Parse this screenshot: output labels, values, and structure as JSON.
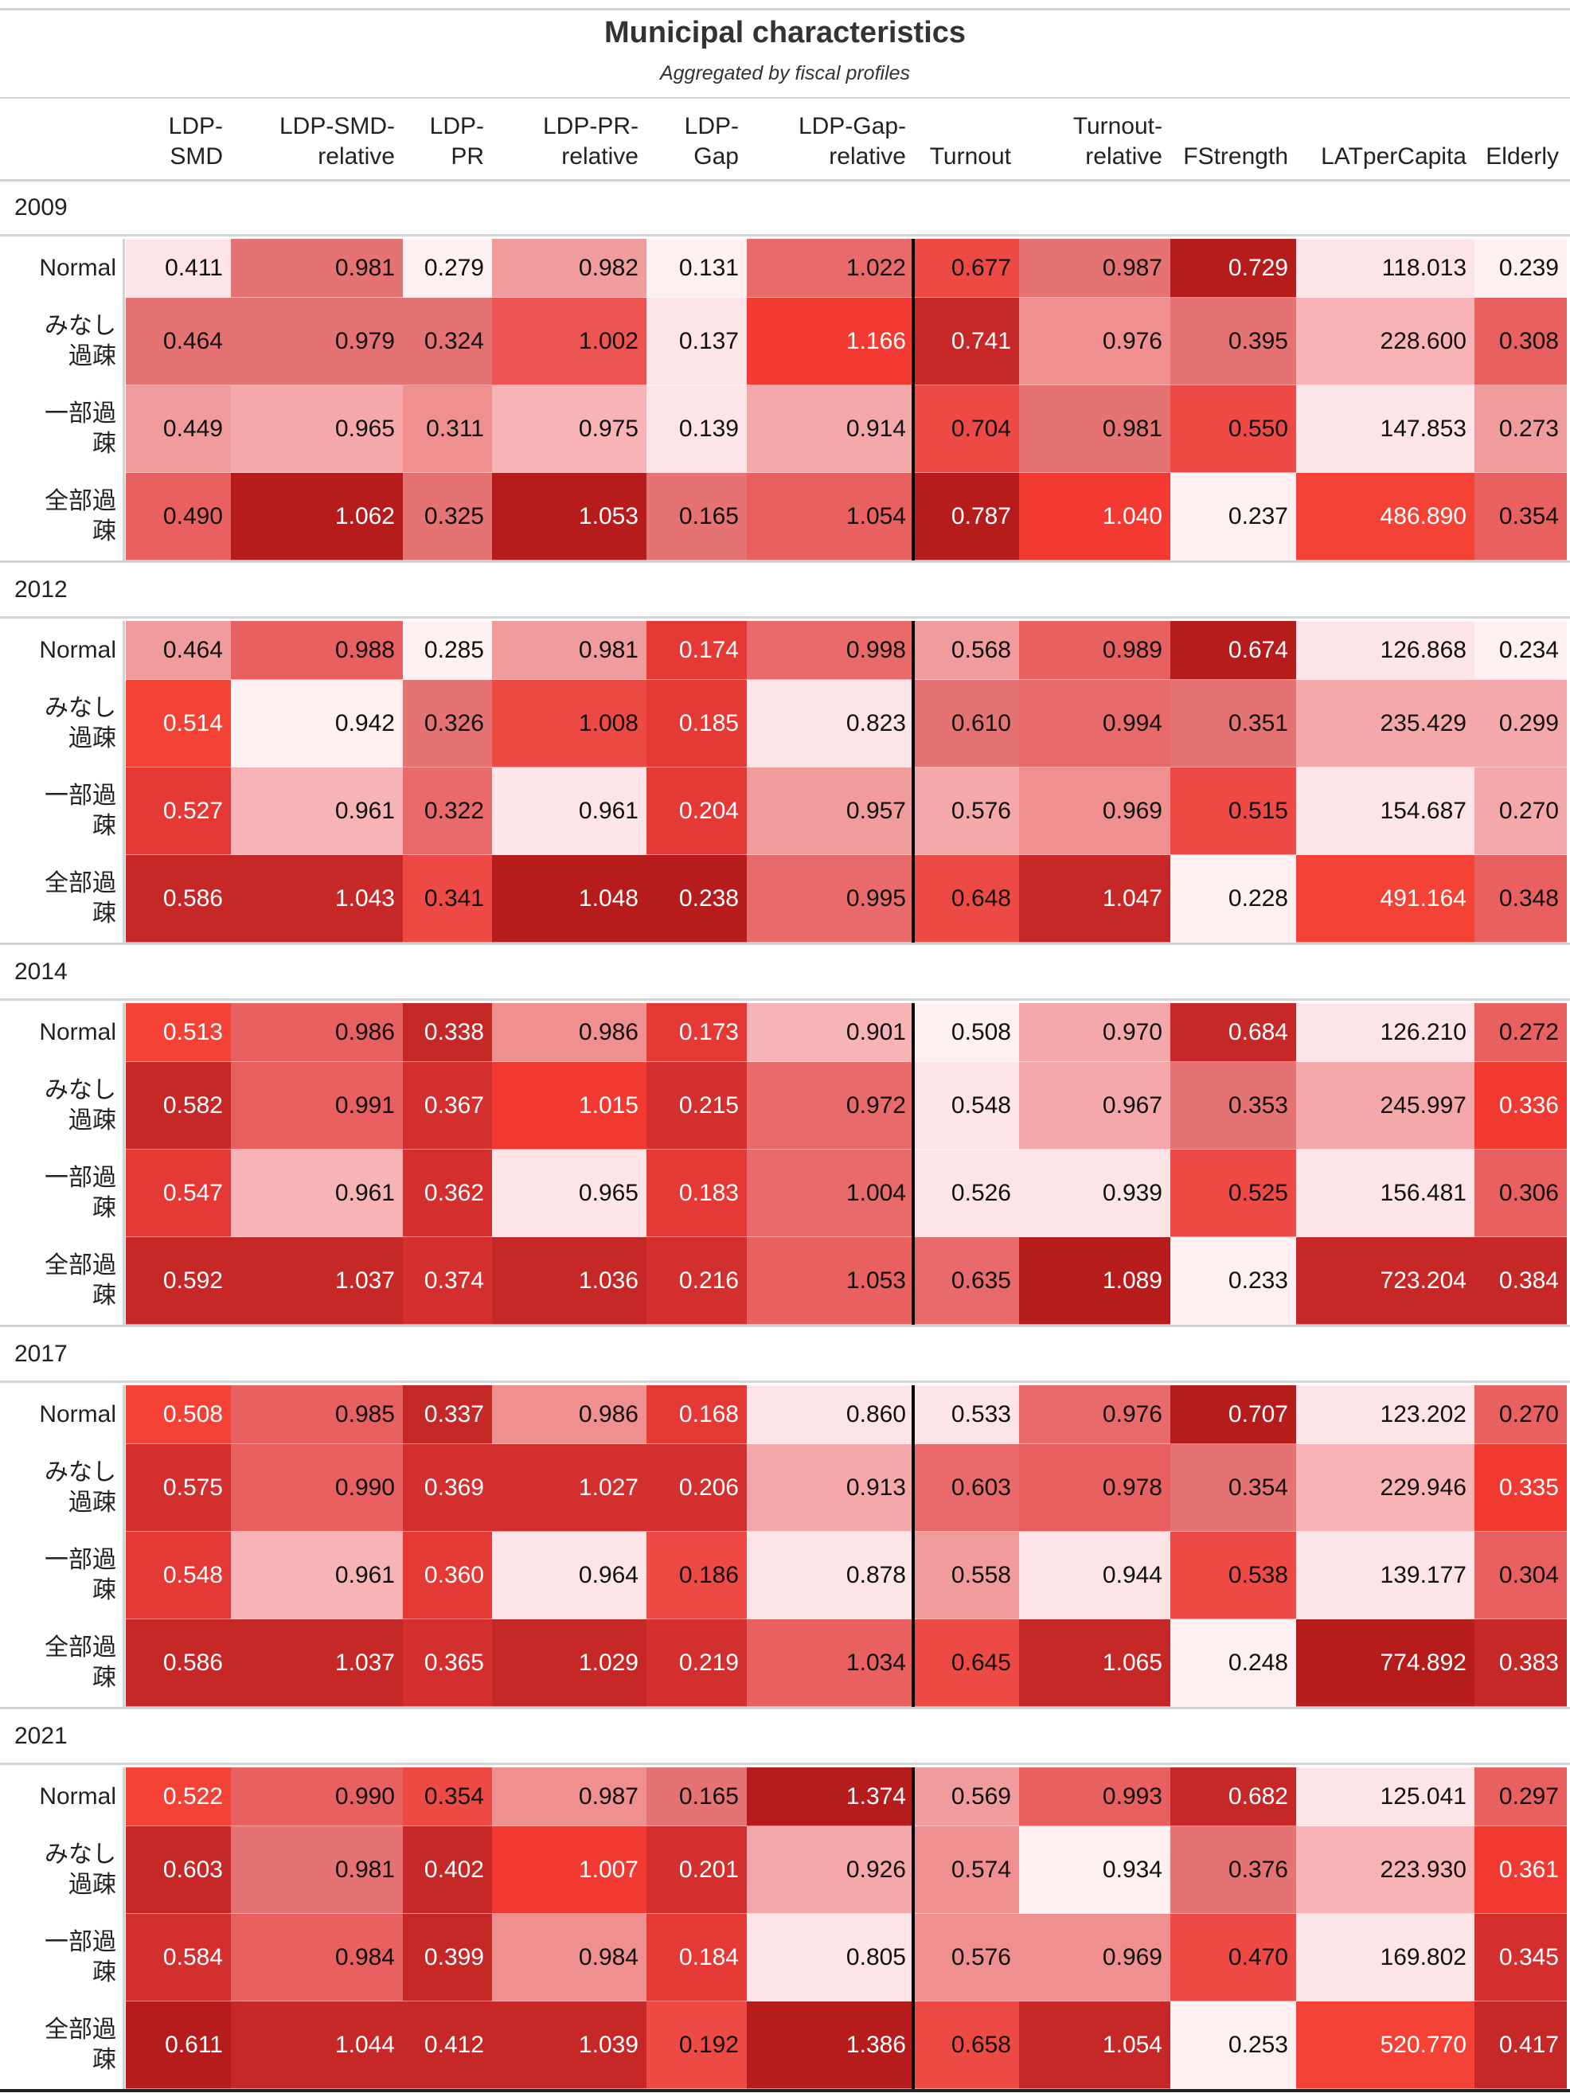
{
  "title": "Municipal characteristics",
  "subtitle": "Aggregated by fiscal profiles",
  "columns": [
    [
      "LDP-",
      "SMD"
    ],
    [
      "LDP-SMD-",
      "relative"
    ],
    [
      "LDP-",
      "PR"
    ],
    [
      "LDP-PR-",
      "relative"
    ],
    [
      "LDP-",
      "Gap"
    ],
    [
      "LDP-Gap-",
      "relative"
    ],
    [
      "Turnout"
    ],
    [
      "Turnout-",
      "relative"
    ],
    [
      "FStrength"
    ],
    [
      "LATperCapita"
    ],
    [
      "Elderly"
    ]
  ],
  "row_labels": [
    [
      "Normal"
    ],
    [
      "みなし",
      "過疎"
    ],
    [
      "一部過",
      "疎"
    ],
    [
      "全部過",
      "疎"
    ]
  ],
  "cell_text": [
    [
      [
        "0.411",
        "0.981",
        "0.279",
        "0.982",
        "0.131",
        "1.022",
        "0.677",
        "0.987",
        "0.729",
        "118.013",
        "0.239"
      ],
      [
        "0.464",
        "0.979",
        "0.324",
        "1.002",
        "0.137",
        "1.166",
        "0.741",
        "0.976",
        "0.395",
        "228.600",
        "0.308"
      ],
      [
        "0.449",
        "0.965",
        "0.311",
        "0.975",
        "0.139",
        "0.914",
        "0.704",
        "0.981",
        "0.550",
        "147.853",
        "0.273"
      ],
      [
        "0.490",
        "1.062",
        "0.325",
        "1.053",
        "0.165",
        "1.054",
        "0.787",
        "1.040",
        "0.237",
        "486.890",
        "0.354"
      ]
    ],
    [
      [
        "0.464",
        "0.988",
        "0.285",
        "0.981",
        "0.174",
        "0.998",
        "0.568",
        "0.989",
        "0.674",
        "126.868",
        "0.234"
      ],
      [
        "0.514",
        "0.942",
        "0.326",
        "1.008",
        "0.185",
        "0.823",
        "0.610",
        "0.994",
        "0.351",
        "235.429",
        "0.299"
      ],
      [
        "0.527",
        "0.961",
        "0.322",
        "0.961",
        "0.204",
        "0.957",
        "0.576",
        "0.969",
        "0.515",
        "154.687",
        "0.270"
      ],
      [
        "0.586",
        "1.043",
        "0.341",
        "1.048",
        "0.238",
        "0.995",
        "0.648",
        "1.047",
        "0.228",
        "491.164",
        "0.348"
      ]
    ],
    [
      [
        "0.513",
        "0.986",
        "0.338",
        "0.986",
        "0.173",
        "0.901",
        "0.508",
        "0.970",
        "0.684",
        "126.210",
        "0.272"
      ],
      [
        "0.582",
        "0.991",
        "0.367",
        "1.015",
        "0.215",
        "0.972",
        "0.548",
        "0.967",
        "0.353",
        "245.997",
        "0.336"
      ],
      [
        "0.547",
        "0.961",
        "0.362",
        "0.965",
        "0.183",
        "1.004",
        "0.526",
        "0.939",
        "0.525",
        "156.481",
        "0.306"
      ],
      [
        "0.592",
        "1.037",
        "0.374",
        "1.036",
        "0.216",
        "1.053",
        "0.635",
        "1.089",
        "0.233",
        "723.204",
        "0.384"
      ]
    ],
    [
      [
        "0.508",
        "0.985",
        "0.337",
        "0.986",
        "0.168",
        "0.860",
        "0.533",
        "0.976",
        "0.707",
        "123.202",
        "0.270"
      ],
      [
        "0.575",
        "0.990",
        "0.369",
        "1.027",
        "0.206",
        "0.913",
        "0.603",
        "0.978",
        "0.354",
        "229.946",
        "0.335"
      ],
      [
        "0.548",
        "0.961",
        "0.360",
        "0.964",
        "0.186",
        "0.878",
        "0.558",
        "0.944",
        "0.538",
        "139.177",
        "0.304"
      ],
      [
        "0.586",
        "1.037",
        "0.365",
        "1.029",
        "0.219",
        "1.034",
        "0.645",
        "1.065",
        "0.248",
        "774.892",
        "0.383"
      ]
    ],
    [
      [
        "0.522",
        "0.990",
        "0.354",
        "0.987",
        "0.165",
        "1.374",
        "0.569",
        "0.993",
        "0.682",
        "125.041",
        "0.297"
      ],
      [
        "0.603",
        "0.981",
        "0.402",
        "1.007",
        "0.201",
        "0.926",
        "0.574",
        "0.934",
        "0.376",
        "223.930",
        "0.361"
      ],
      [
        "0.584",
        "0.984",
        "0.399",
        "0.984",
        "0.184",
        "0.805",
        "0.576",
        "0.969",
        "0.470",
        "169.802",
        "0.345"
      ],
      [
        "0.611",
        "1.044",
        "0.412",
        "1.039",
        "0.192",
        "1.386",
        "0.658",
        "1.054",
        "0.253",
        "520.770",
        "0.417"
      ]
    ]
  ],
  "cell_colors": [
    [
      [
        "#fde4e6",
        "#e57373",
        "#fff0f1",
        "#f09c9c",
        "#fff0f1",
        "#e86a6a",
        "#ee4a45",
        "#e57373",
        "#b71c1c",
        "#fde4e6",
        "#fff0f1"
      ],
      [
        "#e57373",
        "#e57373",
        "#e57373",
        "#ee5552",
        "#fde4e6",
        "#f23a33",
        "#c62828",
        "#f08f8f",
        "#e57373",
        "#f7b3b6",
        "#e8605f"
      ],
      [
        "#f09c9c",
        "#f4a8aa",
        "#f08f8f",
        "#f7b3b6",
        "#fde4e6",
        "#f4a8aa",
        "#ee4a45",
        "#e57373",
        "#ee4a45",
        "#fde4e6",
        "#f09c9c"
      ],
      [
        "#e8605f",
        "#b71c1c",
        "#e57373",
        "#b71c1c",
        "#e57373",
        "#e8605f",
        "#b71c1c",
        "#f23a33",
        "#fff0f1",
        "#f44336",
        "#e8605f"
      ]
    ],
    [
      [
        "#f09c9c",
        "#e8605f",
        "#fff0f1",
        "#f09c9c",
        "#e53935",
        "#e86a6a",
        "#f09c9c",
        "#e8605f",
        "#b71c1c",
        "#fde4e6",
        "#fff0f1"
      ],
      [
        "#f44336",
        "#fff0f1",
        "#e57373",
        "#ee4a45",
        "#e53935",
        "#fde4e6",
        "#e57373",
        "#e86a6a",
        "#e57373",
        "#f4a8aa",
        "#f4a8aa"
      ],
      [
        "#e53935",
        "#f7b3b6",
        "#e86a6a",
        "#fde4e6",
        "#e53935",
        "#f09c9c",
        "#f4a8aa",
        "#f08f8f",
        "#ee4a45",
        "#fde4e6",
        "#f4a8aa"
      ],
      [
        "#c62828",
        "#c62828",
        "#ee4a45",
        "#b71c1c",
        "#b71c1c",
        "#e86a6a",
        "#ee4a45",
        "#c62828",
        "#fff0f1",
        "#f44336",
        "#e8605f"
      ]
    ],
    [
      [
        "#f44336",
        "#e8605f",
        "#c62828",
        "#f08f8f",
        "#e53935",
        "#f7b3b6",
        "#fff0f1",
        "#f4a8aa",
        "#c62828",
        "#fde4e6",
        "#e8605f"
      ],
      [
        "#c62828",
        "#e8605f",
        "#d32f2f",
        "#f23a33",
        "#d32f2f",
        "#e86a6a",
        "#fde4e6",
        "#f4a8aa",
        "#e57373",
        "#f4a8aa",
        "#f23a33"
      ],
      [
        "#e53935",
        "#f7b3b6",
        "#d32f2f",
        "#fde4e6",
        "#e53935",
        "#e86a6a",
        "#fde4e6",
        "#fde4e6",
        "#ee4a45",
        "#fde4e6",
        "#e8605f"
      ],
      [
        "#c62828",
        "#c62828",
        "#d32f2f",
        "#c62828",
        "#d32f2f",
        "#e8605f",
        "#e86a6a",
        "#b71c1c",
        "#fff0f1",
        "#c62828",
        "#c62828"
      ]
    ],
    [
      [
        "#f44336",
        "#e8605f",
        "#c62828",
        "#f08f8f",
        "#e53935",
        "#fde4e6",
        "#fde4e6",
        "#e86a6a",
        "#b71c1c",
        "#fde4e6",
        "#e8605f"
      ],
      [
        "#d32f2f",
        "#e8605f",
        "#d32f2f",
        "#d32f2f",
        "#d32f2f",
        "#f4a8aa",
        "#e86a6a",
        "#e8605f",
        "#e57373",
        "#f7b3b6",
        "#f23a33"
      ],
      [
        "#e53935",
        "#f7b3b6",
        "#e53935",
        "#fde4e6",
        "#ee4a45",
        "#fde4e6",
        "#f09c9c",
        "#fde4e6",
        "#ee4a45",
        "#fde4e6",
        "#e8605f"
      ],
      [
        "#c62828",
        "#c62828",
        "#d32f2f",
        "#c62828",
        "#d32f2f",
        "#e8605f",
        "#ee4a45",
        "#c62828",
        "#fff0f1",
        "#b71c1c",
        "#c62828"
      ]
    ],
    [
      [
        "#f44336",
        "#e8605f",
        "#ee4a45",
        "#f08f8f",
        "#e57373",
        "#b71c1c",
        "#f09c9c",
        "#e8605f",
        "#c62828",
        "#fde4e6",
        "#e8605f"
      ],
      [
        "#c62828",
        "#e57373",
        "#c62828",
        "#f23a33",
        "#d32f2f",
        "#f4a8aa",
        "#f08f8f",
        "#fff0f1",
        "#e57373",
        "#f7b3b6",
        "#f23a33"
      ],
      [
        "#d32f2f",
        "#e8605f",
        "#c62828",
        "#f08f8f",
        "#e53935",
        "#fde4e6",
        "#f08f8f",
        "#f08f8f",
        "#ee4a45",
        "#fde4e6",
        "#d32f2f"
      ],
      [
        "#b71c1c",
        "#c62828",
        "#c62828",
        "#c62828",
        "#ee4a45",
        "#b71c1c",
        "#ee4a45",
        "#c62828",
        "#fff0f1",
        "#f44336",
        "#c62828"
      ]
    ]
  ],
  "chart_data": {
    "type": "table",
    "title": "Municipal characteristics",
    "subtitle": "Aggregated by fiscal profiles",
    "columns": [
      "LDP-SMD",
      "LDP-SMD-relative",
      "LDP-PR",
      "LDP-PR-relative",
      "LDP-Gap",
      "LDP-Gap-relative",
      "Turnout",
      "Turnout-relative",
      "FStrength",
      "LATperCapita",
      "Elderly"
    ],
    "rows": [
      "Normal",
      "みなし過疎",
      "一部過疎",
      "全部過疎"
    ],
    "groups": [
      {
        "name": "2009",
        "values": [
          [
            0.411,
            0.981,
            0.279,
            0.982,
            0.131,
            1.022,
            0.677,
            0.987,
            0.729,
            118.013,
            0.239
          ],
          [
            0.464,
            0.979,
            0.324,
            1.002,
            0.137,
            1.166,
            0.741,
            0.976,
            0.395,
            228.6,
            0.308
          ],
          [
            0.449,
            0.965,
            0.311,
            0.975,
            0.139,
            0.914,
            0.704,
            0.981,
            0.55,
            147.853,
            0.273
          ],
          [
            0.49,
            1.062,
            0.325,
            1.053,
            0.165,
            1.054,
            0.787,
            1.04,
            0.237,
            486.89,
            0.354
          ]
        ]
      },
      {
        "name": "2012",
        "values": [
          [
            0.464,
            0.988,
            0.285,
            0.981,
            0.174,
            0.998,
            0.568,
            0.989,
            0.674,
            126.868,
            0.234
          ],
          [
            0.514,
            0.942,
            0.326,
            1.008,
            0.185,
            0.823,
            0.61,
            0.994,
            0.351,
            235.429,
            0.299
          ],
          [
            0.527,
            0.961,
            0.322,
            0.961,
            0.204,
            0.957,
            0.576,
            0.969,
            0.515,
            154.687,
            0.27
          ],
          [
            0.586,
            1.043,
            0.341,
            1.048,
            0.238,
            0.995,
            0.648,
            1.047,
            0.228,
            491.164,
            0.348
          ]
        ]
      },
      {
        "name": "2014",
        "values": [
          [
            0.513,
            0.986,
            0.338,
            0.986,
            0.173,
            0.901,
            0.508,
            0.97,
            0.684,
            126.21,
            0.272
          ],
          [
            0.582,
            0.991,
            0.367,
            1.015,
            0.215,
            0.972,
            0.548,
            0.967,
            0.353,
            245.997,
            0.336
          ],
          [
            0.547,
            0.961,
            0.362,
            0.965,
            0.183,
            1.004,
            0.526,
            0.939,
            0.525,
            156.481,
            0.306
          ],
          [
            0.592,
            1.037,
            0.374,
            1.036,
            0.216,
            1.053,
            0.635,
            1.089,
            0.233,
            723.204,
            0.384
          ]
        ]
      },
      {
        "name": "2017",
        "values": [
          [
            0.508,
            0.985,
            0.337,
            0.986,
            0.168,
            0.86,
            0.533,
            0.976,
            0.707,
            123.202,
            0.27
          ],
          [
            0.575,
            0.99,
            0.369,
            1.027,
            0.206,
            0.913,
            0.603,
            0.978,
            0.354,
            229.946,
            0.335
          ],
          [
            0.548,
            0.961,
            0.36,
            0.964,
            0.186,
            0.878,
            0.558,
            0.944,
            0.538,
            139.177,
            0.304
          ],
          [
            0.586,
            1.037,
            0.365,
            1.029,
            0.219,
            1.034,
            0.645,
            1.065,
            0.248,
            774.892,
            0.383
          ]
        ]
      },
      {
        "name": "2021",
        "values": [
          [
            0.522,
            0.99,
            0.354,
            0.987,
            0.165,
            1.374,
            0.569,
            0.993,
            0.682,
            125.041,
            0.297
          ],
          [
            0.603,
            0.981,
            0.402,
            1.007,
            0.201,
            0.926,
            0.574,
            0.934,
            0.376,
            223.93,
            0.361
          ],
          [
            0.584,
            0.984,
            0.399,
            0.984,
            0.184,
            0.805,
            0.576,
            0.969,
            0.47,
            169.802,
            0.345
          ],
          [
            0.611,
            1.044,
            0.412,
            1.039,
            0.192,
            1.386,
            0.658,
            1.054,
            0.253,
            520.77,
            0.417
          ]
        ]
      }
    ]
  }
}
